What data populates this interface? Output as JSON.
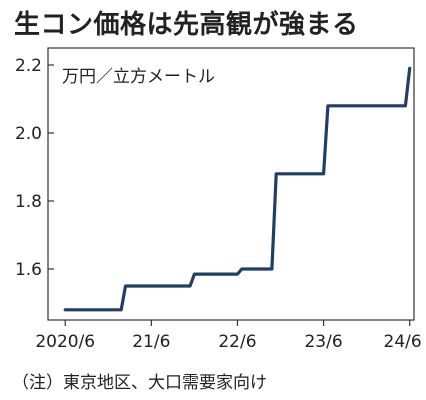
{
  "title": "生コン価格は先高観が強まる",
  "note": "（注）東京地区、大口需要家向け",
  "chart_data": {
    "type": "line",
    "step": true,
    "unit_label": "万円／立方メートル",
    "line_color": "#1f3f66",
    "y_ticks": [
      1.6,
      1.8,
      2.0,
      2.2
    ],
    "y_tick_labels": [
      "1.6",
      "1.8",
      "2.0",
      "2.2"
    ],
    "ylim": [
      1.45,
      2.25
    ],
    "x_ticks": [
      2020.5,
      2021.5,
      2022.5,
      2023.5,
      2024.5
    ],
    "x_tick_labels": [
      "2020/6",
      "21/6",
      "22/6",
      "23/6",
      "24/6"
    ],
    "xlim": [
      2020.3,
      2024.55
    ],
    "x": [
      2020.5,
      2021.15,
      2021.2,
      2021.95,
      2022.0,
      2022.5,
      2022.55,
      2022.9,
      2022.95,
      2023.5,
      2023.55,
      2024.45,
      2024.5
    ],
    "y": [
      1.48,
      1.48,
      1.55,
      1.55,
      1.585,
      1.585,
      1.6,
      1.6,
      1.88,
      1.88,
      2.08,
      2.08,
      2.19
    ],
    "grid": false
  }
}
